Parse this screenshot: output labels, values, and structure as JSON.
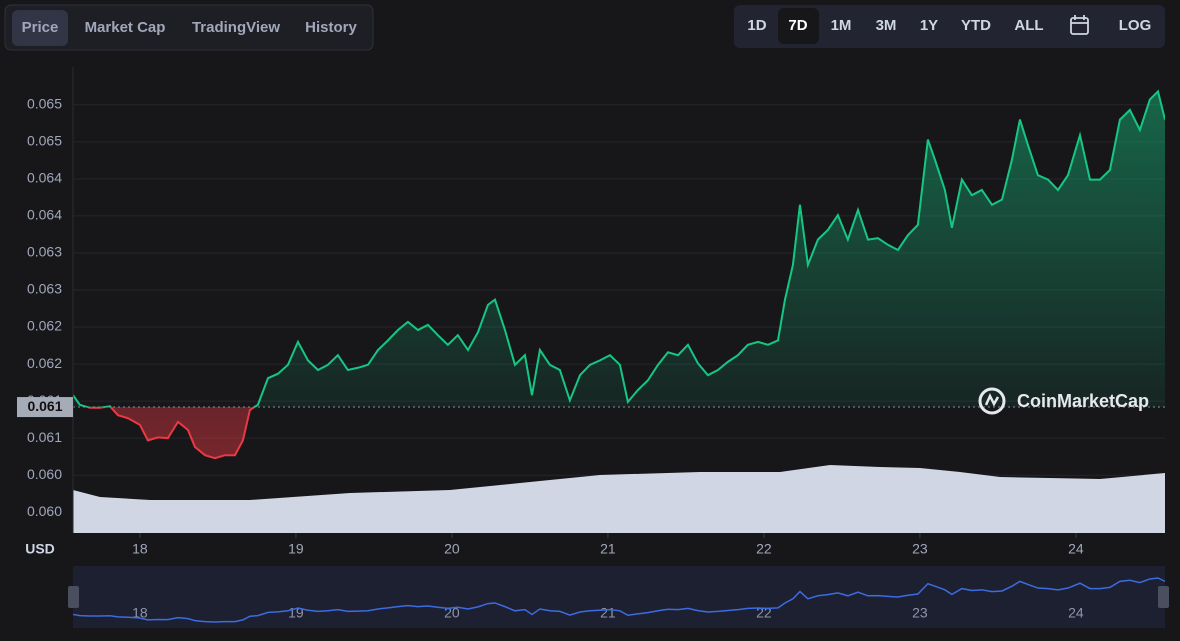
{
  "ui": {
    "tabs": [
      "Price",
      "Market Cap",
      "TradingView",
      "History"
    ],
    "ranges": [
      "1D",
      "7D",
      "1M",
      "3M",
      "1Y",
      "YTD",
      "ALL"
    ],
    "log_button": "LOG"
  },
  "chart_data": {
    "type": "line",
    "y_label": "USD",
    "watermark": "CoinMarketCap",
    "up_color": "#16c784",
    "down_color": "#ea3943",
    "reference": {
      "value": 0.06117,
      "label": "0.061"
    },
    "x": [
      17.571,
      17.615,
      17.679,
      17.744,
      17.808,
      17.859,
      17.923,
      18.0,
      18.051,
      18.115,
      18.179,
      18.244,
      18.308,
      18.353,
      18.417,
      18.481,
      18.545,
      18.609,
      18.66,
      18.705,
      18.756,
      18.821,
      18.885,
      18.949,
      19.013,
      19.077,
      19.141,
      19.205,
      19.269,
      19.333,
      19.397,
      19.462,
      19.526,
      19.59,
      19.654,
      19.718,
      19.782,
      19.846,
      19.91,
      19.974,
      20.038,
      20.103,
      20.167,
      20.231,
      20.276,
      20.34,
      20.404,
      20.468,
      20.513,
      20.564,
      20.628,
      20.692,
      20.756,
      20.821,
      20.885,
      20.949,
      21.013,
      21.077,
      21.128,
      21.192,
      21.256,
      21.321,
      21.385,
      21.449,
      21.513,
      21.577,
      21.641,
      21.705,
      21.769,
      21.833,
      21.897,
      21.962,
      22.026,
      22.09,
      22.135,
      22.186,
      22.231,
      22.282,
      22.346,
      22.41,
      22.474,
      22.538,
      22.603,
      22.667,
      22.731,
      22.795,
      22.859,
      22.923,
      22.987,
      23.051,
      23.096,
      23.16,
      23.205,
      23.269,
      23.333,
      23.397,
      23.462,
      23.526,
      23.59,
      23.641,
      23.692,
      23.756,
      23.821,
      23.885,
      23.949,
      24.026,
      24.09,
      24.154,
      24.218,
      24.282,
      24.346,
      24.41,
      24.474,
      24.526,
      24.571
    ],
    "values": [
      0.06133,
      0.0612,
      0.06116,
      0.06116,
      0.06118,
      0.06106,
      0.06102,
      0.06093,
      0.06072,
      0.06076,
      0.06075,
      0.06097,
      0.06086,
      0.06063,
      0.06052,
      0.06048,
      0.06052,
      0.06052,
      0.06072,
      0.06113,
      0.0612,
      0.06156,
      0.06162,
      0.06174,
      0.06205,
      0.0618,
      0.06167,
      0.06174,
      0.06187,
      0.06167,
      0.0617,
      0.06174,
      0.06194,
      0.06207,
      0.06221,
      0.06232,
      0.06221,
      0.06228,
      0.06214,
      0.06201,
      0.06214,
      0.06194,
      0.06218,
      0.06255,
      0.06262,
      0.06221,
      0.06174,
      0.06187,
      0.06133,
      0.06194,
      0.06174,
      0.06167,
      0.06126,
      0.0616,
      0.06174,
      0.0618,
      0.06187,
      0.06174,
      0.06124,
      0.0614,
      0.06153,
      0.06174,
      0.06191,
      0.06187,
      0.06201,
      0.06176,
      0.0616,
      0.06167,
      0.06178,
      0.06187,
      0.06201,
      0.06205,
      0.06201,
      0.06207,
      0.06262,
      0.06309,
      0.0639,
      0.06309,
      0.06343,
      0.06356,
      0.06376,
      0.06343,
      0.06383,
      0.06343,
      0.06345,
      0.06336,
      0.06329,
      0.06349,
      0.06363,
      0.06478,
      0.06451,
      0.0641,
      0.06359,
      0.06424,
      0.06403,
      0.0641,
      0.0639,
      0.06397,
      0.06451,
      0.06505,
      0.06471,
      0.0643,
      0.06424,
      0.0641,
      0.0643,
      0.06484,
      0.06424,
      0.06424,
      0.06437,
      0.06505,
      0.06518,
      0.06491,
      0.06532,
      0.06543,
      0.06505
    ],
    "xlim": [
      17.571,
      24.571
    ],
    "xticks": [
      18,
      19,
      20,
      21,
      22,
      23,
      24
    ],
    "ylim": [
      0.05947,
      0.06576
    ],
    "yticks": [
      {
        "value": 0.05975,
        "label": "0.060"
      },
      {
        "value": 0.06025,
        "label": "0.060"
      },
      {
        "value": 0.06075,
        "label": "0.061"
      },
      {
        "value": 0.06125,
        "label": "0.061"
      },
      {
        "value": 0.06175,
        "label": "0.062"
      },
      {
        "value": 0.06225,
        "label": "0.062"
      },
      {
        "value": 0.06275,
        "label": "0.063"
      },
      {
        "value": 0.06325,
        "label": "0.063"
      },
      {
        "value": 0.06375,
        "label": "0.064"
      },
      {
        "value": 0.06425,
        "label": "0.064"
      },
      {
        "value": 0.06475,
        "label": "0.065"
      },
      {
        "value": 0.06525,
        "label": "0.065"
      }
    ],
    "grid": true
  }
}
